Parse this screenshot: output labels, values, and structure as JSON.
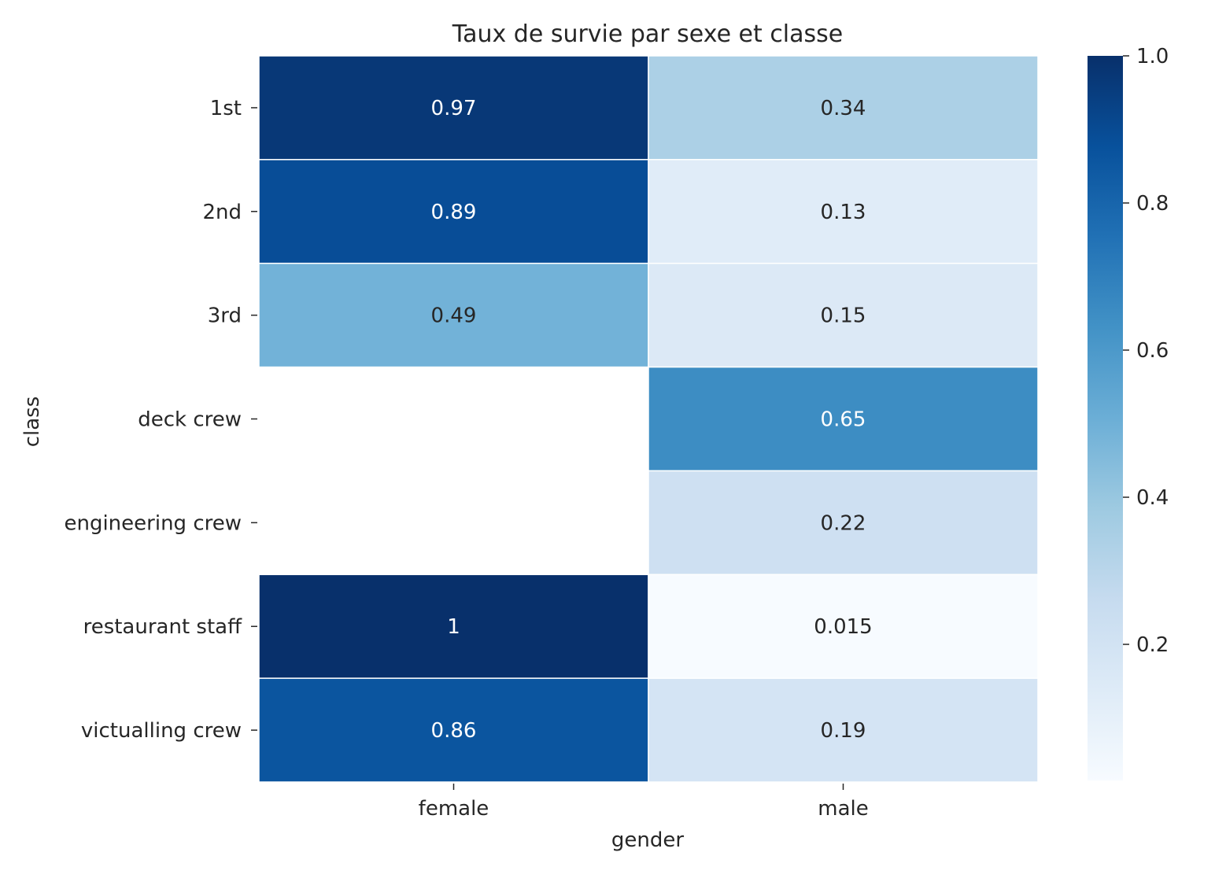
{
  "chart_data": {
    "type": "heatmap",
    "title": "Taux de survie par sexe et classe",
    "xlabel": "gender",
    "ylabel": "class",
    "x_categories": [
      "female",
      "male"
    ],
    "y_categories": [
      "1st",
      "2nd",
      "3rd",
      "deck crew",
      "engineering crew",
      "restaurant staff",
      "victualling crew"
    ],
    "values": [
      [
        0.97,
        0.34
      ],
      [
        0.89,
        0.13
      ],
      [
        0.49,
        0.15
      ],
      [
        null,
        0.65
      ],
      [
        null,
        0.22
      ],
      [
        1,
        0.015
      ],
      [
        0.86,
        0.19
      ]
    ],
    "value_labels": [
      [
        "0.97",
        "0.34"
      ],
      [
        "0.89",
        "0.13"
      ],
      [
        "0.49",
        "0.15"
      ],
      [
        null,
        "0.65"
      ],
      [
        null,
        "0.22"
      ],
      [
        "1",
        "0.015"
      ],
      [
        "0.86",
        "0.19"
      ]
    ],
    "colormap": "Blues",
    "colorbar": {
      "range": [
        0.015,
        1.0
      ],
      "ticks": [
        0.2,
        0.4,
        0.6,
        0.8,
        1.0
      ],
      "tick_labels": [
        "0.2",
        "0.4",
        "0.6",
        "0.8",
        "1.0"
      ]
    },
    "grid": false,
    "legend": "colorbar-right"
  }
}
